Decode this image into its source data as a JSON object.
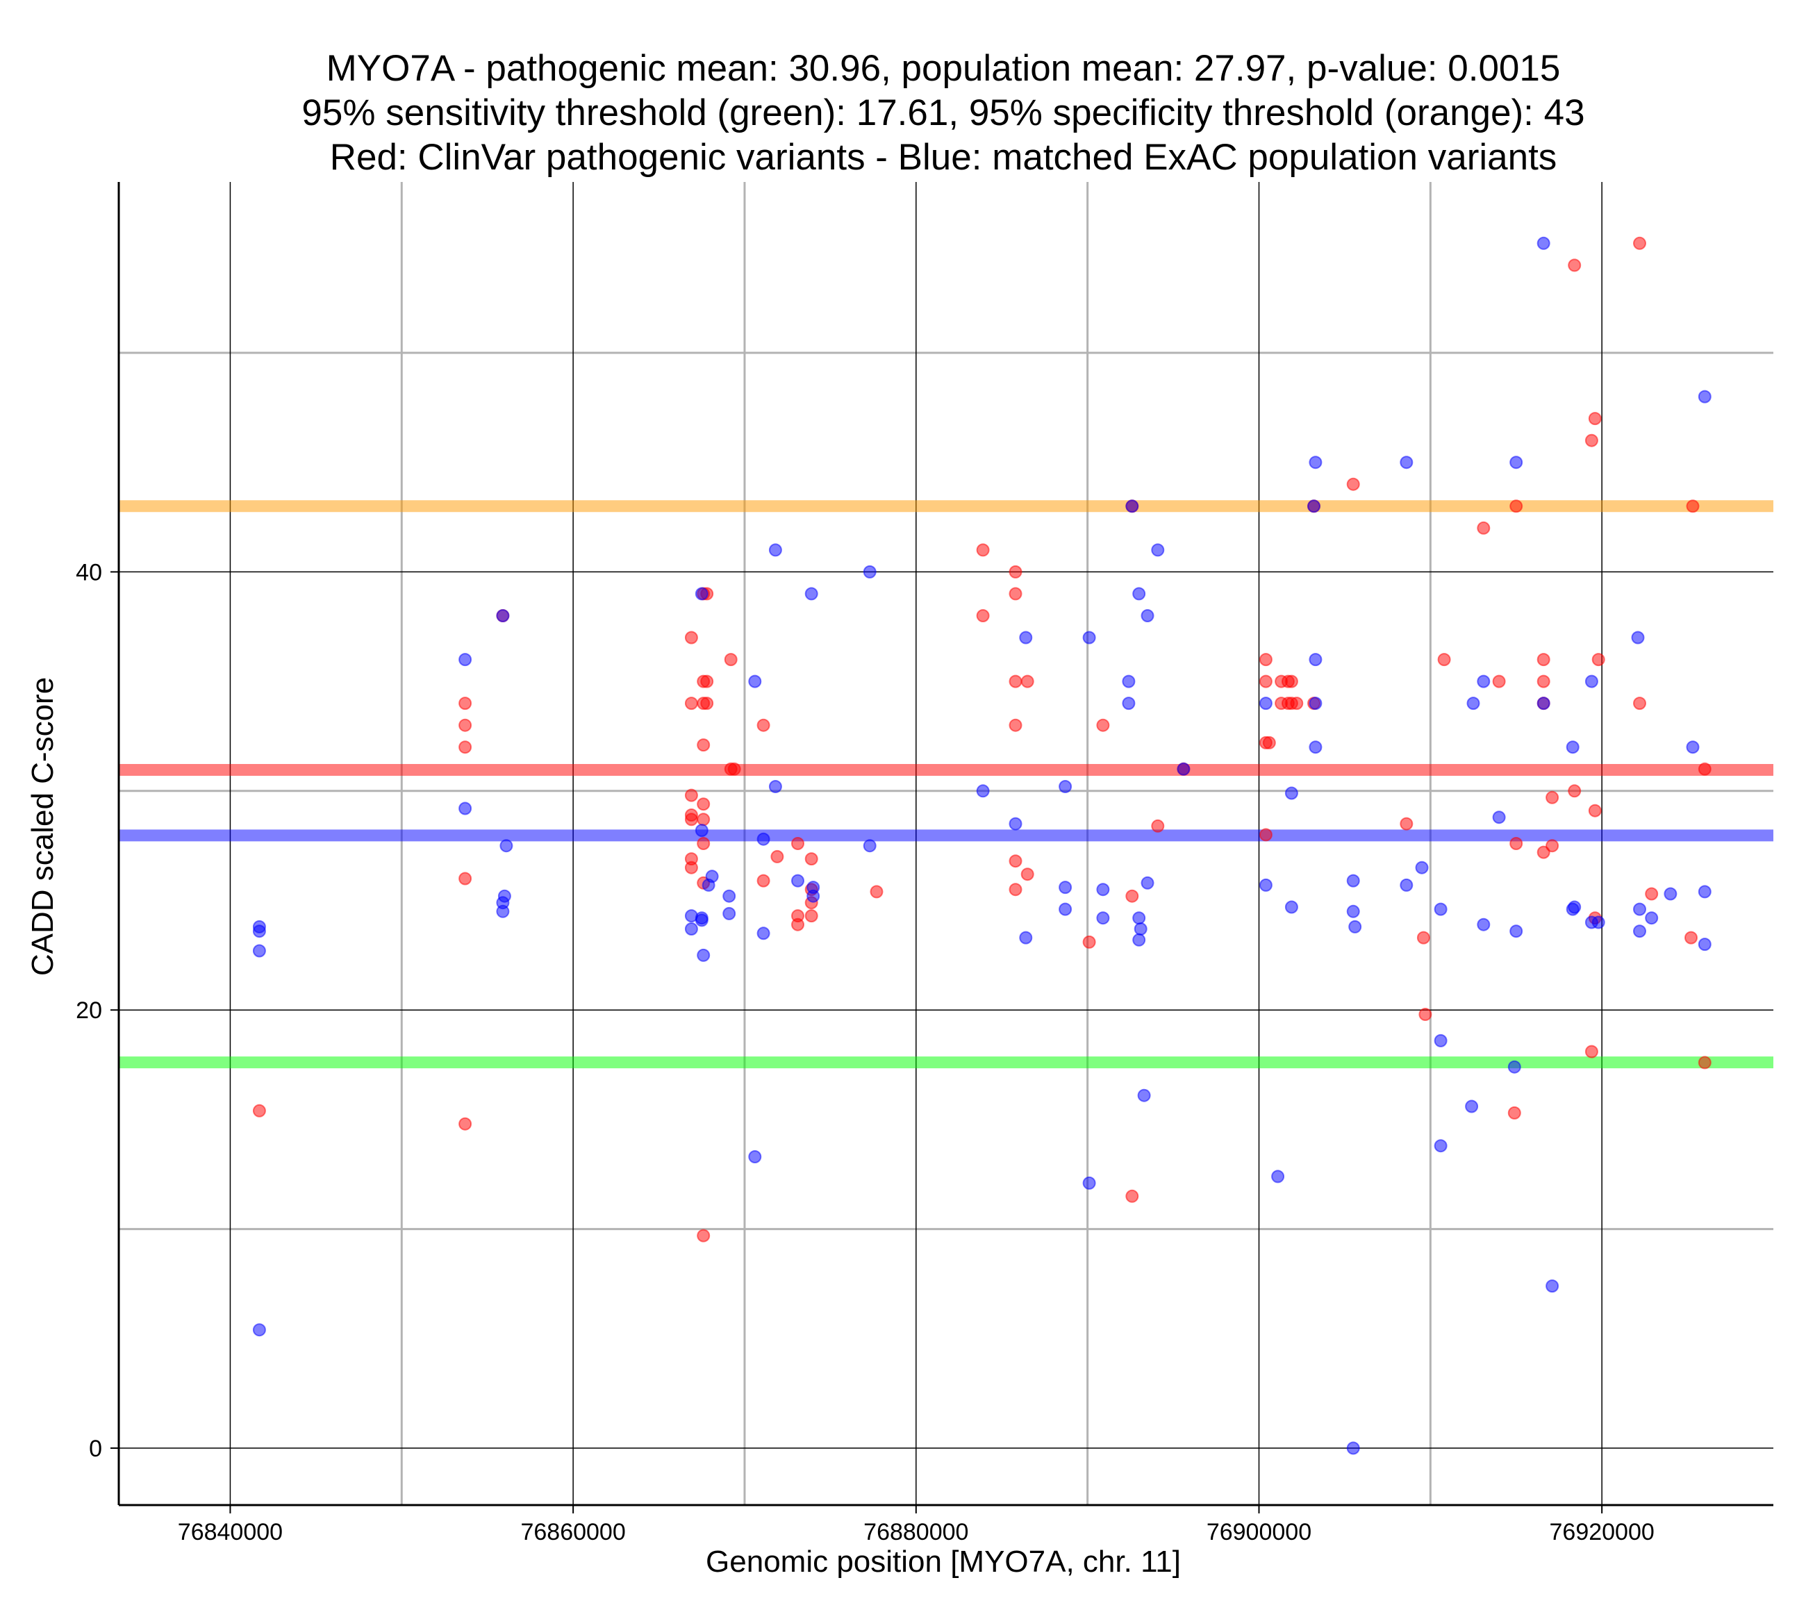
{
  "chart_data": {
    "type": "scatter",
    "title_lines": [
      "MYO7A - pathogenic mean: 30.96, population mean: 27.97, p-value: 0.0015",
      "95% sensitivity threshold (green): 17.61, 95% specificity threshold (orange): 43",
      "Red: ClinVar pathogenic variants - Blue: matched ExAC population variants"
    ],
    "xlabel": "Genomic position [MYO7A, chr. 11]",
    "ylabel": "CADD scaled C-score",
    "xlim": [
      76833500,
      76930000
    ],
    "ylim": [
      -2.6,
      57.8
    ],
    "x_ticks": [
      76840000,
      76860000,
      76880000,
      76900000,
      76920000
    ],
    "x_tick_labels": [
      "76840000",
      "76860000",
      "76880000",
      "76900000",
      "76920000"
    ],
    "x_minor_gridlines": [
      76850000,
      76870000,
      76890000,
      76910000
    ],
    "y_ticks": [
      0,
      20,
      40
    ],
    "y_tick_labels": [
      "0",
      "20",
      "40"
    ],
    "y_minor_gridlines": [
      10,
      30,
      50
    ],
    "grid": true,
    "colors": {
      "pathogenic": "#ff0000",
      "population": "#0000ff",
      "sensitivity_line": "#00ff00",
      "specificity_line": "#ff9900",
      "major_grid": "#000000",
      "minor_grid": "#b3b3b3"
    },
    "hlines": [
      {
        "name": "specificity-threshold-line",
        "y": 43,
        "color": "#ff9900"
      },
      {
        "name": "pathogenic-mean-line",
        "y": 30.96,
        "color": "#ff0000"
      },
      {
        "name": "population-mean-line",
        "y": 27.97,
        "color": "#0000ff"
      },
      {
        "name": "sensitivity-threshold-line",
        "y": 17.61,
        "color": "#00ff00"
      }
    ],
    "series": [
      {
        "name": "ClinVar pathogenic variants",
        "color": "#ff0000",
        "points": [
          [
            76841700,
            15.4
          ],
          [
            76853700,
            34.0
          ],
          [
            76853700,
            33.0
          ],
          [
            76853700,
            32.0
          ],
          [
            76853700,
            26.0
          ],
          [
            76853700,
            14.8
          ],
          [
            76855900,
            38.0
          ],
          [
            76866900,
            37.0
          ],
          [
            76866900,
            34.0
          ],
          [
            76866900,
            29.8
          ],
          [
            76866900,
            28.9
          ],
          [
            76866900,
            28.7
          ],
          [
            76866900,
            26.9
          ],
          [
            76866900,
            26.5
          ],
          [
            76867600,
            39.0
          ],
          [
            76867600,
            35.0
          ],
          [
            76867600,
            34.0
          ],
          [
            76867600,
            32.1
          ],
          [
            76867600,
            29.4
          ],
          [
            76867600,
            28.7
          ],
          [
            76867600,
            27.6
          ],
          [
            76867600,
            25.8
          ],
          [
            76867600,
            9.7
          ],
          [
            76867800,
            39.0
          ],
          [
            76867800,
            35.0
          ],
          [
            76867800,
            34.0
          ],
          [
            76869200,
            36.0
          ],
          [
            76869200,
            31.0
          ],
          [
            76869400,
            31.0
          ],
          [
            76871100,
            33.0
          ],
          [
            76871100,
            25.9
          ],
          [
            76871900,
            27.0
          ],
          [
            76873100,
            27.6
          ],
          [
            76873100,
            24.3
          ],
          [
            76873100,
            23.9
          ],
          [
            76873900,
            26.9
          ],
          [
            76873900,
            25.5
          ],
          [
            76873900,
            24.9
          ],
          [
            76873900,
            24.3
          ],
          [
            76877700,
            25.4
          ],
          [
            76883900,
            41.0
          ],
          [
            76883900,
            38.0
          ],
          [
            76885800,
            40.0
          ],
          [
            76885800,
            39.0
          ],
          [
            76885800,
            35.0
          ],
          [
            76885800,
            33.0
          ],
          [
            76885800,
            26.8
          ],
          [
            76885800,
            25.5
          ],
          [
            76886500,
            35.0
          ],
          [
            76886500,
            26.2
          ],
          [
            76890100,
            23.1
          ],
          [
            76890900,
            33.0
          ],
          [
            76892600,
            43.0
          ],
          [
            76892600,
            25.2
          ],
          [
            76892600,
            11.5
          ],
          [
            76895600,
            31.0
          ],
          [
            76894100,
            28.4
          ],
          [
            76900400,
            36.0
          ],
          [
            76900400,
            35.0
          ],
          [
            76900400,
            32.2
          ],
          [
            76900400,
            28.0
          ],
          [
            76900600,
            32.2
          ],
          [
            76901300,
            35.0
          ],
          [
            76901300,
            34.0
          ],
          [
            76901700,
            35.0
          ],
          [
            76901700,
            34.0
          ],
          [
            76901900,
            35.0
          ],
          [
            76901900,
            34.0
          ],
          [
            76902200,
            34.0
          ],
          [
            76903200,
            43.0
          ],
          [
            76903200,
            34.0
          ],
          [
            76905500,
            44.0
          ],
          [
            76908600,
            28.5
          ],
          [
            76909600,
            23.3
          ],
          [
            76909700,
            19.8
          ],
          [
            76910800,
            36.0
          ],
          [
            76913100,
            42.0
          ],
          [
            76914000,
            35.0
          ],
          [
            76915000,
            43.0
          ],
          [
            76915000,
            27.6
          ],
          [
            76914900,
            15.3
          ],
          [
            76916600,
            36.0
          ],
          [
            76916600,
            35.0
          ],
          [
            76916600,
            34.0
          ],
          [
            76916600,
            27.2
          ],
          [
            76917100,
            29.7
          ],
          [
            76917100,
            27.5
          ],
          [
            76918400,
            54.0
          ],
          [
            76918400,
            30.0
          ],
          [
            76919400,
            46.0
          ],
          [
            76919400,
            18.1
          ],
          [
            76919600,
            47.0
          ],
          [
            76919600,
            29.1
          ],
          [
            76919600,
            24.2
          ],
          [
            76919800,
            36.0
          ],
          [
            76922200,
            55.0
          ],
          [
            76922200,
            34.0
          ],
          [
            76922900,
            25.3
          ],
          [
            76925300,
            43.0
          ],
          [
            76925200,
            23.3
          ],
          [
            76926000,
            31.0
          ],
          [
            76926000,
            17.6
          ]
        ]
      },
      {
        "name": "matched ExAC population variants",
        "color": "#0000ff",
        "points": [
          [
            76841700,
            23.8
          ],
          [
            76841700,
            23.6
          ],
          [
            76841700,
            22.7
          ],
          [
            76841700,
            5.4
          ],
          [
            76853700,
            36.0
          ],
          [
            76853700,
            29.2
          ],
          [
            76855900,
            38.0
          ],
          [
            76856100,
            27.5
          ],
          [
            76856000,
            25.2
          ],
          [
            76855900,
            24.9
          ],
          [
            76855900,
            24.5
          ],
          [
            76866900,
            24.3
          ],
          [
            76866900,
            23.7
          ],
          [
            76867500,
            39.0
          ],
          [
            76867500,
            28.2
          ],
          [
            76867500,
            24.2
          ],
          [
            76867500,
            24.1
          ],
          [
            76867600,
            22.5
          ],
          [
            76868100,
            26.1
          ],
          [
            76867900,
            25.7
          ],
          [
            76869100,
            25.2
          ],
          [
            76869100,
            24.4
          ],
          [
            76870600,
            35.0
          ],
          [
            76870600,
            13.3
          ],
          [
            76871100,
            27.8
          ],
          [
            76871100,
            23.5
          ],
          [
            76871800,
            41.0
          ],
          [
            76871800,
            30.2
          ],
          [
            76873100,
            25.9
          ],
          [
            76873900,
            39.0
          ],
          [
            76874000,
            25.6
          ],
          [
            76874000,
            25.2
          ],
          [
            76877300,
            40.0
          ],
          [
            76877300,
            27.5
          ],
          [
            76883900,
            30.0
          ],
          [
            76885800,
            28.5
          ],
          [
            76886400,
            37.0
          ],
          [
            76886400,
            23.3
          ],
          [
            76888700,
            30.2
          ],
          [
            76888700,
            25.6
          ],
          [
            76888700,
            24.6
          ],
          [
            76890100,
            37.0
          ],
          [
            76890100,
            12.1
          ],
          [
            76890900,
            25.5
          ],
          [
            76890900,
            24.2
          ],
          [
            76892400,
            35.0
          ],
          [
            76892400,
            34.0
          ],
          [
            76892600,
            43.0
          ],
          [
            76893000,
            39.0
          ],
          [
            76893000,
            24.2
          ],
          [
            76893000,
            23.2
          ],
          [
            76893100,
            23.7
          ],
          [
            76893500,
            38.0
          ],
          [
            76893500,
            25.8
          ],
          [
            76893300,
            16.1
          ],
          [
            76894100,
            41.0
          ],
          [
            76895600,
            31.0
          ],
          [
            76903300,
            45.0
          ],
          [
            76903200,
            43.0
          ],
          [
            76903300,
            36.0
          ],
          [
            76903300,
            34.0
          ],
          [
            76903300,
            32.0
          ],
          [
            76900400,
            34.0
          ],
          [
            76900400,
            25.7
          ],
          [
            76901100,
            12.4
          ],
          [
            76901900,
            29.9
          ],
          [
            76901900,
            24.7
          ],
          [
            76905500,
            25.9
          ],
          [
            76905500,
            24.5
          ],
          [
            76905600,
            23.8
          ],
          [
            76905500,
            0.0
          ],
          [
            76908600,
            45.0
          ],
          [
            76908600,
            25.7
          ],
          [
            76909500,
            26.5
          ],
          [
            76910600,
            24.6
          ],
          [
            76910600,
            18.6
          ],
          [
            76910600,
            13.8
          ],
          [
            76912500,
            34.0
          ],
          [
            76912400,
            15.6
          ],
          [
            76913100,
            35.0
          ],
          [
            76913100,
            23.9
          ],
          [
            76914000,
            28.8
          ],
          [
            76915000,
            45.0
          ],
          [
            76915000,
            23.6
          ],
          [
            76914900,
            17.4
          ],
          [
            76916600,
            55.0
          ],
          [
            76916600,
            34.0
          ],
          [
            76917100,
            7.4
          ],
          [
            76918300,
            32.0
          ],
          [
            76918400,
            24.7
          ],
          [
            76918300,
            24.6
          ],
          [
            76919400,
            35.0
          ],
          [
            76919400,
            24.0
          ],
          [
            76919800,
            24.0
          ],
          [
            76922100,
            37.0
          ],
          [
            76922200,
            24.6
          ],
          [
            76922200,
            23.6
          ],
          [
            76922900,
            24.2
          ],
          [
            76924000,
            25.3
          ],
          [
            76925300,
            32.0
          ],
          [
            76926000,
            48.0
          ],
          [
            76926000,
            25.4
          ],
          [
            76926000,
            23.0
          ]
        ]
      }
    ]
  }
}
